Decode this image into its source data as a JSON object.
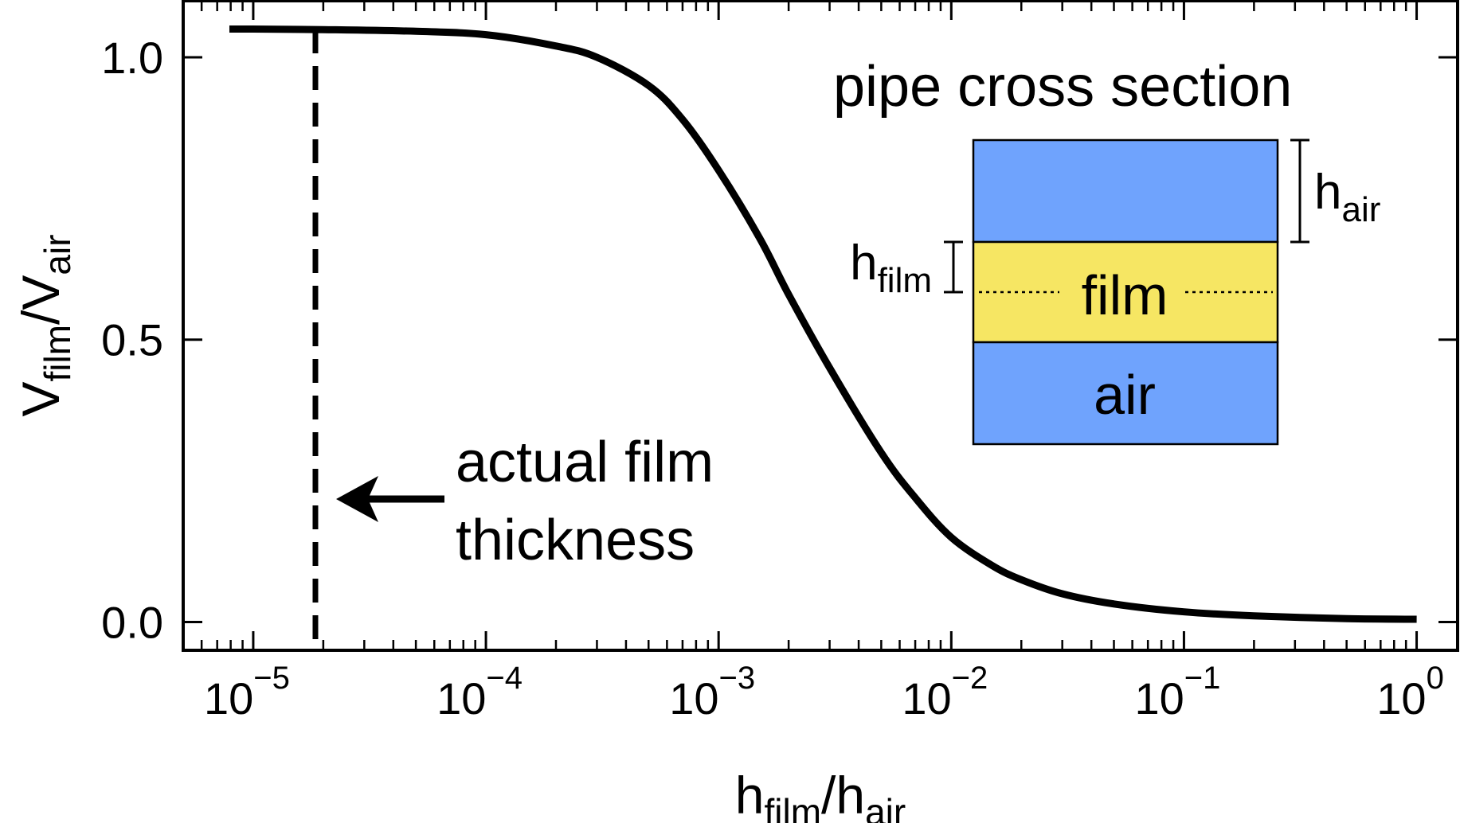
{
  "chart_data": {
    "type": "line",
    "xscale": "log",
    "xlim": [
      5e-06,
      1.5
    ],
    "ylim": [
      -0.05,
      1.1
    ],
    "x_tick_bases": [
      "10",
      "10",
      "10",
      "10",
      "10",
      "10"
    ],
    "x_tick_exponents": [
      "−5",
      "−4",
      "−3",
      "−2",
      "−1",
      "0"
    ],
    "x_tick_values": [
      1e-05,
      0.0001,
      0.001,
      0.01,
      0.1,
      1
    ],
    "y_ticks": [
      0.0,
      0.5,
      1.0
    ],
    "y_tick_labels": [
      "0.0",
      "0.5",
      "1.0"
    ],
    "xlabel": {
      "h1": "h",
      "sub1": "film",
      "slash": "/h",
      "sub2": "air"
    },
    "ylabel": {
      "v1": "V",
      "sub1": "film",
      "slash": "/V",
      "sub2": "air"
    },
    "series": [
      {
        "style": "solid",
        "x": [
          7.9e-06,
          1e-05,
          2e-05,
          5e-05,
          0.0001,
          0.0002,
          0.0003,
          0.0005,
          0.0007,
          0.001,
          0.0015,
          0.002,
          0.003,
          0.005,
          0.007,
          0.01,
          0.015,
          0.02,
          0.03,
          0.05,
          0.1,
          0.2,
          0.5,
          1.0
        ],
        "y": [
          1.05,
          1.05,
          1.049,
          1.046,
          1.04,
          1.02,
          1.0,
          0.95,
          0.89,
          0.8,
          0.68,
          0.58,
          0.45,
          0.3,
          0.22,
          0.15,
          0.1,
          0.075,
          0.05,
          0.032,
          0.018,
          0.011,
          0.006,
          0.005
        ]
      }
    ],
    "vline": {
      "x": 1.85e-05,
      "style": "dashed"
    },
    "annotation": {
      "line1": "actual film",
      "line2": "thickness"
    },
    "inset": {
      "title": "pipe cross section",
      "film_label": "film",
      "air_label": "air",
      "h_air": {
        "base": "h",
        "sub": "air"
      },
      "h_film": {
        "base": "h",
        "sub": "film"
      },
      "air_color": "#6fa3fd",
      "film_color": "#f6e663"
    }
  }
}
